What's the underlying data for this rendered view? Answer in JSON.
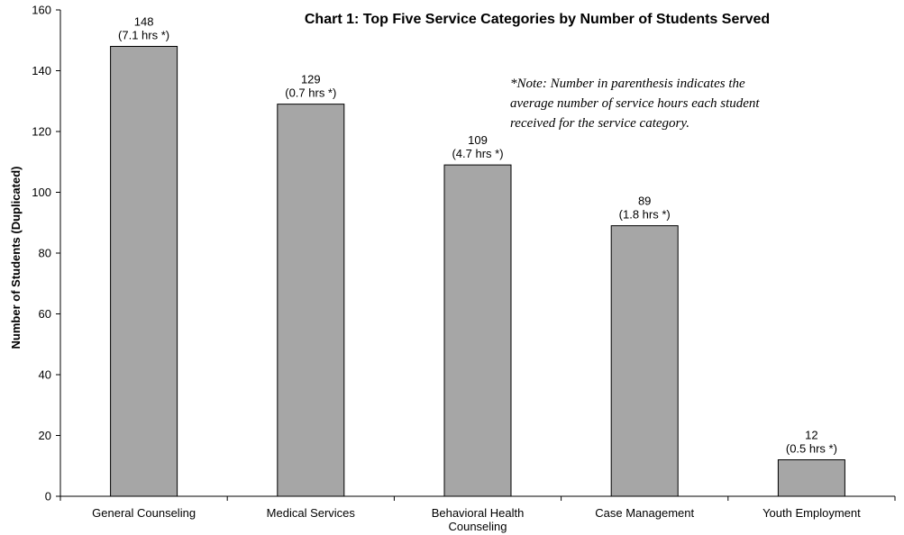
{
  "chart_data": {
    "type": "bar",
    "title": "Chart 1: Top Five Service Categories by Number of Students Served",
    "ylabel": "Number of Students (Duplicated)",
    "xlabel": "",
    "ylim": [
      0,
      160
    ],
    "y_ticks": [
      "0",
      "20",
      "40",
      "60",
      "80",
      "100",
      "120",
      "140",
      "160"
    ],
    "categories": [
      [
        "General Counseling"
      ],
      [
        "Medical Services"
      ],
      [
        "Behavioral Health",
        "Counseling"
      ],
      [
        "Case Management"
      ],
      [
        "Youth Employment"
      ]
    ],
    "values": [
      148,
      129,
      109,
      89,
      12
    ],
    "data_labels": [
      [
        "148",
        "(7.1 hrs *)"
      ],
      [
        "129",
        "(0.7 hrs *)"
      ],
      [
        "109",
        "(4.7 hrs *)"
      ],
      [
        "89",
        "(1.8 hrs *)"
      ],
      [
        "12",
        "(0.5 hrs *)"
      ]
    ],
    "avg_hours": [
      7.1,
      0.7,
      4.7,
      1.8,
      0.5
    ],
    "annotation": [
      "*Note: Number in parenthesis indicates the",
      "average number of service hours each student",
      "received for the service category."
    ],
    "bar_color": "#a6a6a6",
    "bar_stroke": "#000000",
    "grid": false,
    "legend": "none"
  }
}
